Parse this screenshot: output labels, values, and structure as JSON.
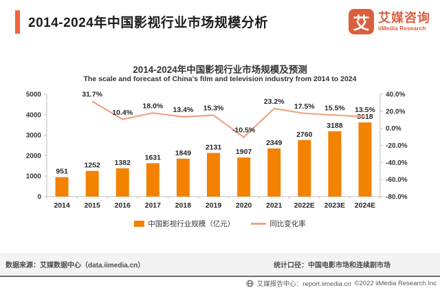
{
  "header": {
    "title": "2014-2024年中国影视行业市场规模分析",
    "logo": {
      "mark": "艾",
      "name_cn": "艾媒咨询",
      "name_en": "iiMedia Research"
    }
  },
  "chart_data": {
    "type": "bar+line",
    "title": "2014-2024年中国影视行业市场规模及预测",
    "subtitle": "The scale and forecast of China's film and television industry from 2014 to 2024",
    "categories": [
      "2014",
      "2015",
      "2016",
      "2017",
      "2018",
      "2019",
      "2020",
      "2021",
      "2022E",
      "2023E",
      "2024E"
    ],
    "series": [
      {
        "name": "中国影视行业规模（亿元）",
        "type": "bar",
        "values": [
          951,
          1252,
          1382,
          1631,
          1849,
          2131,
          1907,
          2349,
          2760,
          3188,
          3618
        ],
        "color": "#f28200"
      },
      {
        "name": "同比变化率",
        "type": "line",
        "values": [
          null,
          31.7,
          10.4,
          18.0,
          13.4,
          15.3,
          -10.5,
          23.2,
          17.5,
          15.5,
          13.5
        ],
        "unit": "%",
        "color": "#f0a27f"
      }
    ],
    "left_axis": {
      "min": 0,
      "max": 5000,
      "step": 1000
    },
    "right_axis": {
      "min": -80,
      "max": 40,
      "step": 20,
      "format": "percent1"
    },
    "grid": false,
    "legend_position": "bottom",
    "axis_color": "#bfbfbf"
  },
  "footer": {
    "source": "数据来源：艾媒数据中心（data.iimedia.cn）",
    "caliber": "统计口径：中国电影市场和连续剧市场",
    "report_center": "艾媒报告中心：report.iimedia.cn",
    "copyright": "©2022  iiMedia Research Inc"
  }
}
